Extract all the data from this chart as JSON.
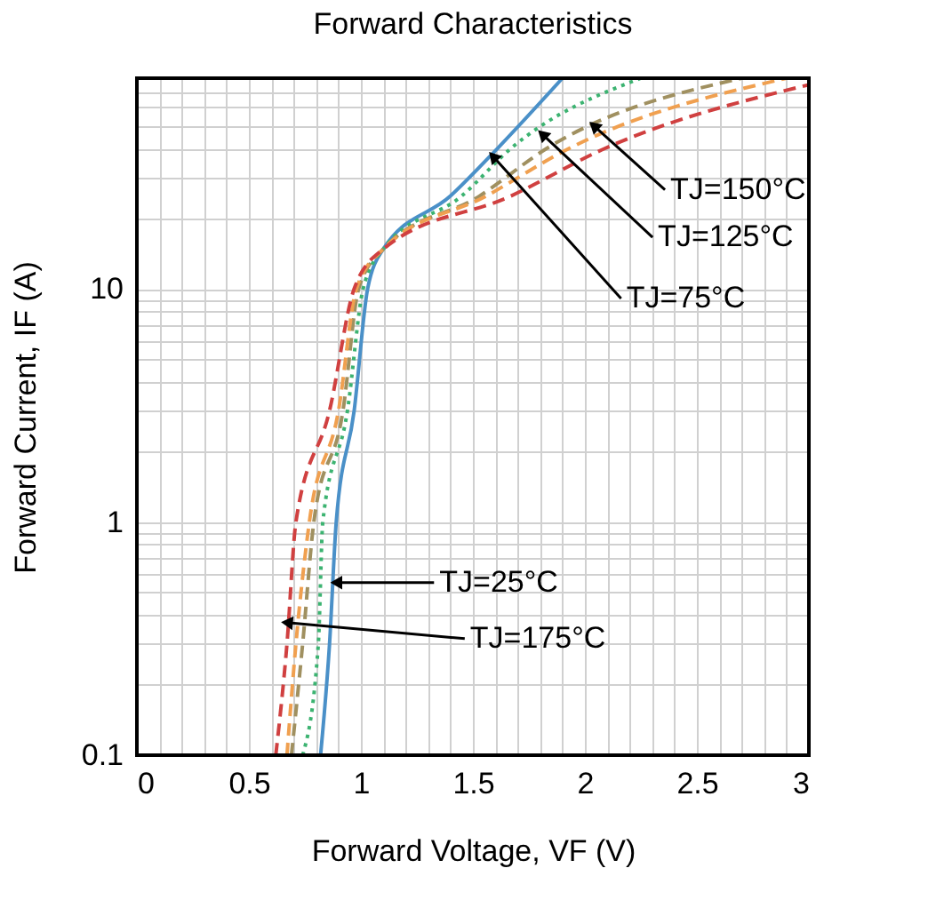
{
  "chart_data": {
    "type": "line",
    "title": "Forward Characteristics",
    "xlabel": "Forward Voltage, VF (V)",
    "ylabel": "Forward Current, IF (A)",
    "log": "y",
    "grid": true,
    "xlim": [
      0,
      3
    ],
    "ylim": [
      0.1,
      80
    ],
    "xticks": [
      0,
      {
        "value": 0.1,
        "label": null
      },
      {
        "value": 0.2,
        "label": null
      },
      {
        "value": 0.3,
        "label": null
      },
      {
        "value": 0.4,
        "label": null
      },
      0.5,
      {
        "value": 0.6,
        "label": null
      },
      {
        "value": 0.7,
        "label": null
      },
      {
        "value": 0.8,
        "label": null
      },
      {
        "value": 0.9,
        "label": null
      },
      1,
      {
        "value": 1.1,
        "label": null
      },
      {
        "value": 1.2,
        "label": null
      },
      {
        "value": 1.3,
        "label": null
      },
      {
        "value": 1.4,
        "label": null
      },
      1.5,
      {
        "value": 1.6,
        "label": null
      },
      {
        "value": 1.7,
        "label": null
      },
      {
        "value": 1.8,
        "label": null
      },
      {
        "value": 1.9,
        "label": null
      },
      2,
      {
        "value": 2.1,
        "label": null
      },
      {
        "value": 2.2,
        "label": null
      },
      {
        "value": 2.3,
        "label": null
      },
      {
        "value": 2.4,
        "label": null
      },
      2.5,
      {
        "value": 2.6,
        "label": null
      },
      {
        "value": 2.7,
        "label": null
      },
      {
        "value": 2.8,
        "label": null
      },
      {
        "value": 2.9,
        "label": null
      },
      3
    ],
    "yticks": [
      0.1,
      {
        "value": 0.2,
        "label": null
      },
      {
        "value": 0.3,
        "label": null
      },
      {
        "value": 0.4,
        "label": null
      },
      {
        "value": 0.5,
        "label": null
      },
      {
        "value": 0.6,
        "label": null
      },
      {
        "value": 0.7,
        "label": null
      },
      {
        "value": 0.8,
        "label": null
      },
      {
        "value": 0.9,
        "label": null
      },
      1,
      {
        "value": 2,
        "label": null
      },
      {
        "value": 3,
        "label": null
      },
      {
        "value": 4,
        "label": null
      },
      {
        "value": 5,
        "label": null
      },
      {
        "value": 6,
        "label": null
      },
      {
        "value": 7,
        "label": null
      },
      {
        "value": 8,
        "label": null
      },
      {
        "value": 9,
        "label": null
      },
      10,
      {
        "value": 20,
        "label": null
      },
      {
        "value": 30,
        "label": null
      },
      {
        "value": 40,
        "label": null
      },
      {
        "value": 50,
        "label": null
      },
      {
        "value": 60,
        "label": null
      },
      {
        "value": 70,
        "label": null
      },
      {
        "value": 80,
        "label": null
      }
    ],
    "series": [
      {
        "color": "#4a90c8",
        "line_style": "solid",
        "x": [
          0.82,
          0.86,
          0.89,
          0.97,
          1.03,
          1.1,
          1.4,
          1.61,
          1.9
        ],
        "values": [
          0.1,
          0.3,
          1,
          3,
          10,
          14.8,
          25,
          40,
          80
        ]
      },
      {
        "color": "#3cb371",
        "line_style": "dotted",
        "x": [
          0.74,
          0.81,
          0.83,
          0.94,
          1.01,
          1.1,
          1.45,
          1.67,
          2.25
        ],
        "values": [
          0.1,
          0.3,
          1,
          3,
          10,
          14.8,
          25,
          40,
          80
        ]
      },
      {
        "color": "#a09060",
        "line_style": "dashed",
        "x": [
          0.69,
          0.74,
          0.79,
          0.92,
          0.99,
          1.1,
          1.53,
          1.83,
          2.7
        ],
        "values": [
          0.1,
          0.3,
          1,
          3,
          10,
          14.8,
          25,
          40,
          80
        ]
      },
      {
        "color": "#f0a050",
        "line_style": "dashed",
        "x": [
          0.67,
          0.71,
          0.77,
          0.9,
          0.98,
          1.1,
          1.56,
          1.93,
          2.9
        ],
        "values": [
          0.1,
          0.3,
          1,
          3,
          10,
          14.8,
          25,
          40,
          80
        ]
      },
      {
        "color": "#d04040",
        "line_style": "dashed",
        "x": [
          0.62,
          0.67,
          0.71,
          0.86,
          0.97,
          1.1,
          1.67,
          2.09,
          3.0
        ],
        "values": [
          0.1,
          0.3,
          1,
          3,
          10,
          14.8,
          25,
          40,
          75
        ]
      }
    ],
    "annotations": [
      {
        "text": "TJ=150°C",
        "x": 2.04,
        "y": 50
      },
      {
        "text": "TJ=125°C",
        "x": 1.81,
        "y": 46
      },
      {
        "text": "TJ=75°C",
        "x": 1.59,
        "y": 37
      },
      {
        "text": "TJ=25°C",
        "x": 0.89,
        "y": 0.55
      },
      {
        "text": "TJ=175°C",
        "x": 0.67,
        "y": 0.37
      }
    ]
  }
}
